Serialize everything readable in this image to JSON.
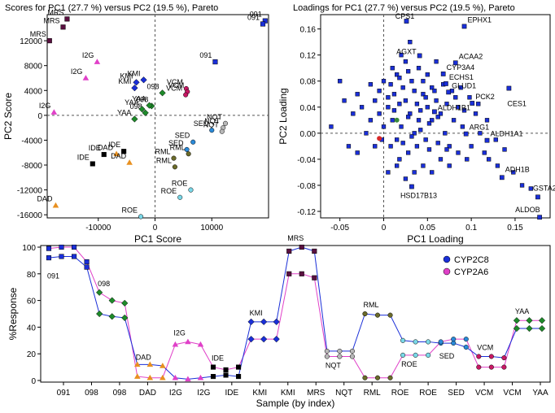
{
  "chart_data": [
    {
      "type": "scatter",
      "title": "Scores for PC1 (27.7 %) versus PC2 (19.5 %), Pareto",
      "xlabel": "PC1 Score",
      "ylabel": "PC2 Score",
      "xlim": [
        -19000,
        20000
      ],
      "ylim": [
        -16500,
        16200
      ],
      "xticks": [
        -10000,
        0,
        10000
      ],
      "yticks": [
        -16000,
        -12000,
        -8000,
        -4000,
        0,
        4000,
        8000,
        12000
      ],
      "points": [
        {
          "label": "MRS",
          "x": -15500,
          "y": 15500,
          "color": "#5a1040",
          "shape": "square"
        },
        {
          "label": "MRS",
          "x": -16200,
          "y": 14200,
          "color": "#5a1040",
          "shape": "square"
        },
        {
          "label": "MRS",
          "x": -18600,
          "y": 12000,
          "color": "#5a1040",
          "shape": "square"
        },
        {
          "label": "091",
          "x": 19400,
          "y": 15200,
          "color": "#1a2fd8",
          "shape": "square"
        },
        {
          "label": "091",
          "x": 19000,
          "y": 14700,
          "color": "#1a2fd8",
          "shape": "square"
        },
        {
          "label": "091",
          "x": 10600,
          "y": 8600,
          "color": "#1a2fd8",
          "shape": "square"
        },
        {
          "label": "I2G",
          "x": -10200,
          "y": 8600,
          "color": "#e040c8",
          "shape": "triangle"
        },
        {
          "label": "I2G",
          "x": -12200,
          "y": 6000,
          "color": "#e040c8",
          "shape": "triangle"
        },
        {
          "label": "I2G",
          "x": -17800,
          "y": 500,
          "color": "#e040c8",
          "shape": "triangle"
        },
        {
          "label": "KMI",
          "x": -2000,
          "y": 5700,
          "color": "#1a2fd8",
          "shape": "diamond"
        },
        {
          "label": "KMI",
          "x": -3300,
          "y": 5300,
          "color": "#1a2fd8",
          "shape": "diamond"
        },
        {
          "label": "KMI",
          "x": -3600,
          "y": 4400,
          "color": "#1a2fd8",
          "shape": "diamond"
        },
        {
          "label": "VCM",
          "x": 5500,
          "y": 4300,
          "color": "#c81864",
          "shape": "circle"
        },
        {
          "label": "VCM",
          "x": 5700,
          "y": 3800,
          "color": "#c81864",
          "shape": "circle"
        },
        {
          "label": "VCM",
          "x": 5400,
          "y": 3300,
          "color": "#c81864",
          "shape": "circle"
        },
        {
          "label": "098",
          "x": 1300,
          "y": 3600,
          "color": "#1e8a2a",
          "shape": "diamond"
        },
        {
          "label": "098",
          "x": -600,
          "y": 1500,
          "color": "#1e8a2a",
          "shape": "diamond"
        },
        {
          "label": "098",
          "x": -1700,
          "y": 400,
          "color": "#1e8a2a",
          "shape": "diamond"
        },
        {
          "label": "YAA",
          "x": -1000,
          "y": 1600,
          "color": "#1e8a2a",
          "shape": "diamond"
        },
        {
          "label": "YAA",
          "x": -2300,
          "y": 1000,
          "color": "#1e8a2a",
          "shape": "diamond"
        },
        {
          "label": "YAA",
          "x": -3600,
          "y": -600,
          "color": "#1e8a2a",
          "shape": "diamond"
        },
        {
          "label": "NQT",
          "x": 12400,
          "y": -1300,
          "color": "#b8b8b8",
          "shape": "circle"
        },
        {
          "label": "NQT",
          "x": 12000,
          "y": -2000,
          "color": "#b8b8b8",
          "shape": "circle"
        },
        {
          "label": "NQT",
          "x": 11800,
          "y": -2600,
          "color": "#b8b8b8",
          "shape": "circle"
        },
        {
          "label": "SED",
          "x": 10000,
          "y": -2400,
          "color": "#2a8ad8",
          "shape": "circle"
        },
        {
          "label": "SED",
          "x": 6700,
          "y": -4300,
          "color": "#2a8ad8",
          "shape": "circle"
        },
        {
          "label": "SED",
          "x": 5600,
          "y": -5500,
          "color": "#2a8ad8",
          "shape": "circle"
        },
        {
          "label": "RML",
          "x": 5900,
          "y": -6200,
          "color": "#6b6b2a",
          "shape": "circle"
        },
        {
          "label": "RML",
          "x": 3300,
          "y": -6900,
          "color": "#6b6b2a",
          "shape": "circle"
        },
        {
          "label": "RML",
          "x": 3500,
          "y": -8300,
          "color": "#6b6b2a",
          "shape": "circle"
        },
        {
          "label": "IDE",
          "x": -5500,
          "y": -5800,
          "color": "#000000",
          "shape": "square"
        },
        {
          "label": "IDE",
          "x": -9000,
          "y": -6300,
          "color": "#000000",
          "shape": "square"
        },
        {
          "label": "IDE",
          "x": -11000,
          "y": -7800,
          "color": "#000000",
          "shape": "square"
        },
        {
          "label": "DAD",
          "x": -6800,
          "y": -6200,
          "color": "#e89020",
          "shape": "triangle"
        },
        {
          "label": "DAD",
          "x": -4500,
          "y": -7600,
          "color": "#e89020",
          "shape": "triangle"
        },
        {
          "label": "DAD",
          "x": -17500,
          "y": -14500,
          "color": "#e89020",
          "shape": "triangle"
        },
        {
          "label": "ROE",
          "x": 6300,
          "y": -12000,
          "color": "#7ad8e8",
          "shape": "circle"
        },
        {
          "label": "ROE",
          "x": 4400,
          "y": -13200,
          "color": "#7ad8e8",
          "shape": "circle"
        },
        {
          "label": "ROE",
          "x": -2500,
          "y": -16300,
          "color": "#7ad8e8",
          "shape": "circle"
        }
      ]
    },
    {
      "type": "scatter",
      "title": "Loadings for PC1 (27.7 %) versus PC2 (19.5 %), Pareto",
      "xlabel": "PC1 Loading",
      "ylabel": "PC2 Loading",
      "xlim": [
        -0.072,
        0.19
      ],
      "ylim": [
        -0.13,
        0.182
      ],
      "xticks": [
        -0.05,
        0,
        0.05,
        0.1,
        0.15
      ],
      "yticks": [
        -0.12,
        -0.08,
        -0.04,
        0.0,
        0.04,
        0.08,
        0.12,
        0.16
      ],
      "point_color": "#1a2fd8",
      "labeled_points": [
        {
          "label": "CPS1",
          "x": 0.026,
          "y": 0.172
        },
        {
          "label": "EPHX1",
          "x": 0.092,
          "y": 0.164
        },
        {
          "label": "AGXT",
          "x": 0.041,
          "y": 0.119
        },
        {
          "label": "ACAA2",
          "x": 0.082,
          "y": 0.108
        },
        {
          "label": "CYP3A4",
          "x": 0.068,
          "y": 0.091
        },
        {
          "label": "ECHS1",
          "x": 0.071,
          "y": 0.076
        },
        {
          "label": "GLUD1",
          "x": 0.074,
          "y": 0.063
        },
        {
          "label": "PCK2",
          "x": 0.101,
          "y": 0.046
        },
        {
          "label": "CES1",
          "x": 0.143,
          "y": 0.069
        },
        {
          "label": "ALDH1B1",
          "x": 0.058,
          "y": 0.033
        },
        {
          "label": "ARG1",
          "x": 0.094,
          "y": -0.001
        },
        {
          "label": "ALDH1A1",
          "x": 0.118,
          "y": -0.011
        },
        {
          "label": "ADH1B",
          "x": 0.135,
          "y": -0.068
        },
        {
          "label": "GSTA2",
          "x": 0.176,
          "y": -0.098
        },
        {
          "label": "ALDOB",
          "x": 0.178,
          "y": -0.129
        },
        {
          "label": "HSD17B13",
          "x": 0.032,
          "y": -0.082
        }
      ],
      "cloud_points": [
        [
          0.01,
          0.02
        ],
        [
          0.02,
          0.01
        ],
        [
          0.03,
          0.03
        ],
        [
          0.005,
          0.04
        ],
        [
          0.015,
          -0.01
        ],
        [
          0.025,
          0.05
        ],
        [
          0.035,
          0.0
        ],
        [
          0.04,
          0.02
        ],
        [
          0.0,
          0.01
        ],
        [
          -0.005,
          0.03
        ],
        [
          -0.01,
          0.05
        ],
        [
          -0.015,
          0.02
        ],
        [
          0.012,
          0.06
        ],
        [
          0.022,
          0.07
        ],
        [
          0.032,
          0.08
        ],
        [
          0.045,
          0.06
        ],
        [
          0.05,
          0.04
        ],
        [
          0.055,
          0.02
        ],
        [
          0.06,
          0.05
        ],
        [
          0.065,
          0.03
        ],
        [
          0.048,
          -0.01
        ],
        [
          0.038,
          -0.02
        ],
        [
          0.028,
          -0.03
        ],
        [
          0.018,
          -0.04
        ],
        [
          0.008,
          -0.02
        ],
        [
          -0.002,
          -0.01
        ],
        [
          0.07,
          0.0
        ],
        [
          0.075,
          -0.02
        ],
        [
          0.08,
          0.02
        ],
        [
          0.085,
          0.04
        ],
        [
          0.09,
          0.01
        ],
        [
          0.1,
          -0.02
        ],
        [
          0.11,
          0.0
        ],
        [
          0.105,
          0.03
        ],
        [
          0.12,
          -0.04
        ],
        [
          0.13,
          -0.05
        ],
        [
          0.115,
          -0.03
        ],
        [
          0.095,
          -0.04
        ],
        [
          0.085,
          -0.03
        ],
        [
          0.075,
          -0.05
        ],
        [
          0.065,
          -0.04
        ],
        [
          0.055,
          -0.06
        ],
        [
          0.045,
          -0.05
        ],
        [
          0.035,
          -0.06
        ],
        [
          0.025,
          -0.07
        ],
        [
          0.015,
          -0.05
        ],
        [
          0.005,
          -0.06
        ],
        [
          -0.01,
          -0.02
        ],
        [
          -0.02,
          0.0
        ],
        [
          -0.025,
          0.04
        ],
        [
          -0.03,
          0.06
        ],
        [
          -0.035,
          0.03
        ],
        [
          -0.045,
          0.05
        ],
        [
          -0.05,
          0.08
        ],
        [
          -0.06,
          0.01
        ],
        [
          -0.04,
          -0.02
        ],
        [
          -0.03,
          -0.03
        ],
        [
          0.0,
          0.08
        ],
        [
          0.01,
          0.1
        ],
        [
          0.02,
          0.12
        ],
        [
          0.03,
          0.14
        ],
        [
          0.015,
          0.09
        ],
        [
          0.025,
          0.11
        ],
        [
          0.04,
          0.1
        ],
        [
          0.05,
          0.09
        ],
        [
          0.06,
          0.11
        ],
        [
          0.055,
          0.07
        ],
        [
          0.045,
          0.08
        ],
        [
          0.035,
          0.065
        ],
        [
          0.012,
          0.035
        ],
        [
          0.018,
          0.045
        ],
        [
          0.028,
          0.025
        ],
        [
          0.042,
          0.035
        ],
        [
          0.052,
          0.015
        ],
        [
          0.062,
          0.025
        ],
        [
          0.072,
          0.045
        ],
        [
          0.082,
          0.055
        ],
        [
          0.092,
          0.035
        ],
        [
          0.022,
          -0.015
        ],
        [
          0.032,
          -0.005
        ],
        [
          0.042,
          0.005
        ],
        [
          0.052,
          -0.025
        ],
        [
          0.062,
          -0.015
        ],
        [
          0.072,
          -0.025
        ],
        [
          0.005,
          0.055
        ],
        [
          -0.005,
          0.065
        ],
        [
          -0.015,
          0.075
        ],
        [
          0.008,
          0.075
        ],
        [
          0.018,
          0.085
        ],
        [
          0.028,
          0.095
        ],
        [
          0.038,
          0.045
        ],
        [
          0.048,
          0.055
        ],
        [
          0.058,
          0.065
        ],
        [
          0.068,
          0.075
        ],
        [
          0.078,
          0.065
        ],
        [
          0.088,
          0.07
        ],
        [
          0.098,
          0.055
        ],
        [
          0.108,
          0.045
        ],
        [
          0.118,
          0.02
        ],
        [
          0.128,
          -0.01
        ],
        [
          0.138,
          -0.025
        ],
        [
          0.148,
          -0.06
        ],
        [
          0.158,
          -0.08
        ],
        [
          0.168,
          -0.085
        ]
      ]
    },
    {
      "type": "line",
      "xlabel": "Sample  (by index)",
      "ylabel": "%Response",
      "ylim": [
        0,
        100
      ],
      "yticks": [
        0,
        20,
        40,
        60,
        80,
        100
      ],
      "x_tick_labels": [
        "091",
        "098",
        "098",
        "DAD",
        "I2G",
        "I2G",
        "IDE",
        "KMI",
        "KMI",
        "MRS",
        "NQT",
        "RML",
        "ROE",
        "ROE",
        "SED",
        "VCM",
        "VCM",
        "YAA"
      ],
      "legend": [
        "CYP2C8",
        "CYP2A6"
      ],
      "groups": [
        {
          "label": "091",
          "color": "#1a2fd8",
          "shape": "square",
          "cyp2c8": [
            92,
            93,
            93,
            85
          ],
          "cyp2a6": [
            99,
            100,
            100,
            89
          ]
        },
        {
          "label": "098",
          "color": "#1e8a2a",
          "shape": "diamond",
          "cyp2c8": [
            50,
            48,
            47
          ],
          "cyp2a6": [
            66,
            60,
            58
          ]
        },
        {
          "label": "DAD",
          "color": "#e89020",
          "shape": "triangle",
          "cyp2c8": [
            12,
            12,
            11
          ],
          "cyp2a6": [
            3,
            2,
            2
          ]
        },
        {
          "label": "I2G",
          "color": "#e040c8",
          "shape": "triangle",
          "cyp2c8": [
            2,
            1,
            2
          ],
          "cyp2a6": [
            27,
            29,
            27
          ]
        },
        {
          "label": "IDE",
          "color": "#000000",
          "shape": "square",
          "cyp2c8": [
            3,
            4,
            3
          ],
          "cyp2a6": [
            10,
            8,
            10
          ]
        },
        {
          "label": "KMI",
          "color": "#1a2fd8",
          "shape": "diamond",
          "cyp2c8": [
            44,
            44,
            44
          ],
          "cyp2a6": [
            31,
            31,
            31
          ]
        },
        {
          "label": "MRS",
          "color": "#5a1040",
          "shape": "square",
          "cyp2c8": [
            97,
            100,
            97
          ],
          "cyp2a6": [
            80,
            80,
            77
          ]
        },
        {
          "label": "NQT",
          "color": "#b8b8b8",
          "shape": "circle",
          "cyp2c8": [
            22,
            22,
            22
          ],
          "cyp2a6": [
            18,
            18,
            18
          ]
        },
        {
          "label": "RML",
          "color": "#6b6b2a",
          "shape": "circle",
          "cyp2c8": [
            50,
            49,
            49
          ],
          "cyp2a6": [
            2,
            2,
            2
          ]
        },
        {
          "label": "ROE",
          "color": "#7ad8e8",
          "shape": "circle",
          "cyp2c8": [
            30,
            29,
            29
          ],
          "cyp2a6": [
            19,
            19,
            19
          ]
        },
        {
          "label": "SED",
          "color": "#2a8ad8",
          "shape": "circle",
          "cyp2c8": [
            28,
            28,
            25
          ],
          "cyp2a6": [
            29,
            31,
            31
          ]
        },
        {
          "label": "VCM",
          "color": "#c81864",
          "shape": "circle",
          "cyp2c8": [
            18,
            18,
            17
          ],
          "cyp2a6": [
            10,
            10,
            10
          ]
        },
        {
          "label": "YAA",
          "color": "#1e8a2a",
          "shape": "diamond",
          "cyp2c8": [
            39,
            39,
            39
          ],
          "cyp2a6": [
            45,
            45,
            45
          ]
        }
      ],
      "series_colors": {
        "CYP2C8": "#1a2fd8",
        "CYP2A6": "#e040c8"
      }
    }
  ]
}
